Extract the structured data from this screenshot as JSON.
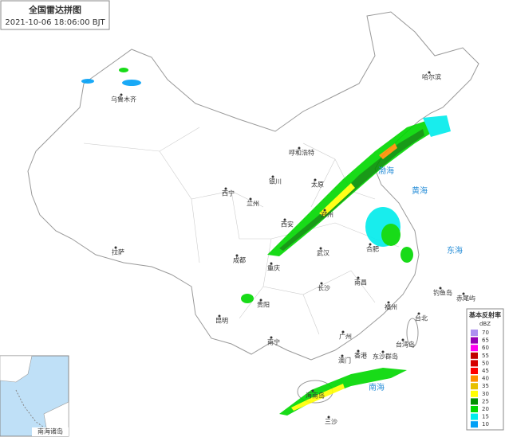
{
  "header": {
    "title": "全国雷达拼图",
    "time": "2021-10-06 18:06:00 BJT"
  },
  "places": [
    {
      "label": "乌鲁木齐"
    },
    {
      "label": "哈尔滨"
    },
    {
      "label": "呼和浩特"
    },
    {
      "label": "银川"
    },
    {
      "label": "太原"
    },
    {
      "label": "西宁"
    },
    {
      "label": "兰州"
    },
    {
      "label": "郑州"
    },
    {
      "label": "西安"
    },
    {
      "label": "拉萨"
    },
    {
      "label": "成都"
    },
    {
      "label": "重庆"
    },
    {
      "label": "武汉"
    },
    {
      "label": "合肥"
    },
    {
      "label": "长沙"
    },
    {
      "label": "南昌"
    },
    {
      "label": "贵阳"
    },
    {
      "label": "昆明"
    },
    {
      "label": "福州"
    },
    {
      "label": "台北"
    },
    {
      "label": "钓鱼岛"
    },
    {
      "label": "赤尾屿"
    },
    {
      "label": "台湾岛"
    },
    {
      "label": "南宁"
    },
    {
      "label": "广州"
    },
    {
      "label": "香港"
    },
    {
      "label": "澳门"
    },
    {
      "label": "东沙群岛"
    },
    {
      "label": "海南岛"
    },
    {
      "label": "三沙"
    }
  ],
  "seas": [
    {
      "label": "渤海"
    },
    {
      "label": "黄海"
    },
    {
      "label": "东海"
    },
    {
      "label": "南海"
    }
  ],
  "legend": {
    "title": "基本反射率",
    "unit": "dBZ",
    "levels": [
      {
        "value": 70,
        "color": "#ad90f0"
      },
      {
        "value": 65,
        "color": "#9600b4"
      },
      {
        "value": 60,
        "color": "#ff00f0"
      },
      {
        "value": 55,
        "color": "#c00000"
      },
      {
        "value": 50,
        "color": "#d60000"
      },
      {
        "value": 45,
        "color": "#ff0000"
      },
      {
        "value": 40,
        "color": "#ff9000"
      },
      {
        "value": 35,
        "color": "#e7c000"
      },
      {
        "value": 30,
        "color": "#ffff00"
      },
      {
        "value": 25,
        "color": "#019000"
      },
      {
        "value": 20,
        "color": "#00d800"
      },
      {
        "value": 15,
        "color": "#00ecec"
      },
      {
        "value": 10,
        "color": "#01a0f6"
      }
    ]
  },
  "inset": {
    "label": "南海诸岛"
  }
}
